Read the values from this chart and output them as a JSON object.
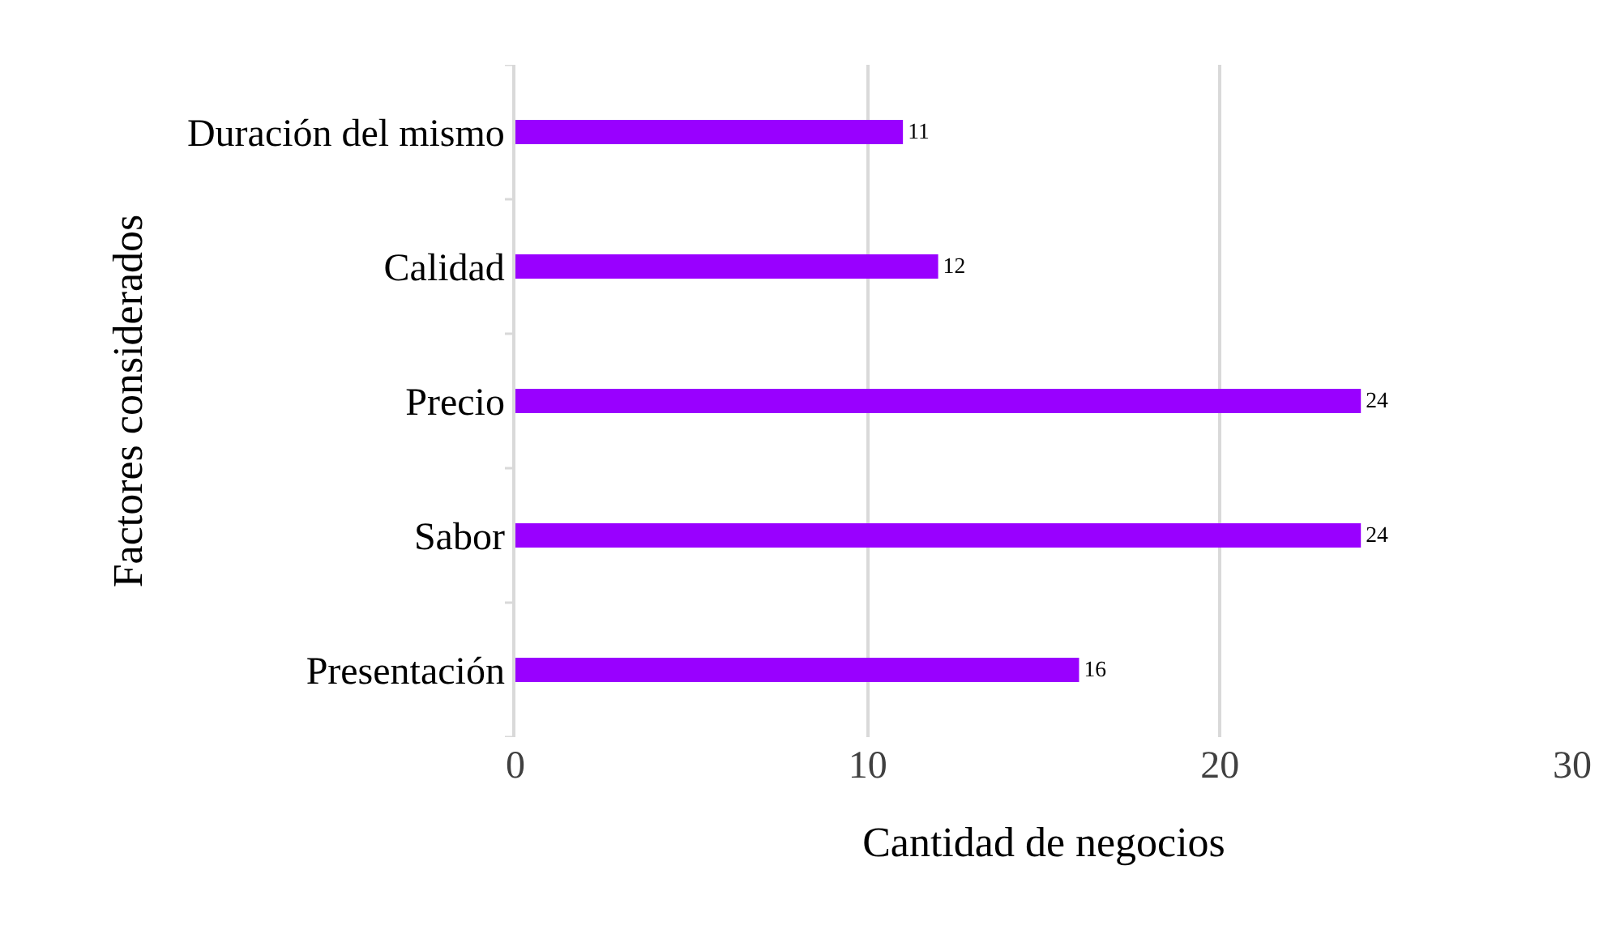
{
  "chart_data": {
    "type": "bar",
    "orientation": "horizontal",
    "xlabel": "Cantidad de negocios",
    "ylabel": "Factores considerados",
    "categories": [
      "Duración del mismo",
      "Calidad",
      "Precio",
      "Sabor",
      "Presentación"
    ],
    "values": [
      11,
      12,
      24,
      24,
      16
    ],
    "color": "#9900ff",
    "xlim": [
      0,
      30
    ],
    "xticks": [
      0,
      10,
      20,
      30
    ],
    "grid": "x",
    "data_labels": true
  }
}
